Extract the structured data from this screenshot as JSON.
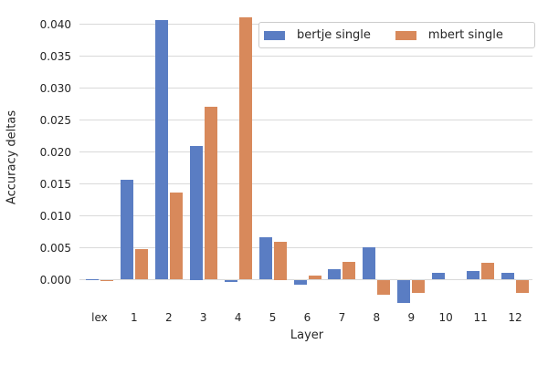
{
  "chart_data": {
    "type": "bar",
    "title": "",
    "xlabel": "Layer",
    "ylabel": "Accuracy deltas",
    "categories": [
      "lex",
      "1",
      "2",
      "3",
      "4",
      "5",
      "6",
      "7",
      "8",
      "9",
      "10",
      "11",
      "12"
    ],
    "series": [
      {
        "name": "bertje single",
        "color": "#5a7dc3",
        "values": [
          0.0001,
          0.0157,
          0.0407,
          0.021,
          -0.0003,
          0.0066,
          -0.0008,
          0.0016,
          0.0051,
          -0.0037,
          0.0011,
          0.0014,
          0.0011
        ]
      },
      {
        "name": "mbert single",
        "color": "#d8895b",
        "values": [
          -0.0001,
          0.0048,
          0.0136,
          0.0271,
          0.0411,
          0.006,
          0.0006,
          0.0028,
          -0.0023,
          -0.0021,
          0.0,
          0.0027,
          -0.002
        ]
      }
    ],
    "ylim": [
      -0.0042,
      0.0422
    ],
    "yticks": [
      0.0,
      0.005,
      0.01,
      0.015,
      0.02,
      0.025,
      0.03,
      0.035,
      0.04
    ],
    "ytick_labels": [
      "0.000",
      "0.005",
      "0.010",
      "0.015",
      "0.020",
      "0.025",
      "0.030",
      "0.035",
      "0.040"
    ],
    "grid": true,
    "legend_position": "upper right",
    "colors": {
      "background": "#ffffff",
      "gridline": "#d9d9d9",
      "text": "#262626",
      "legend_border": "#cccccc"
    }
  }
}
